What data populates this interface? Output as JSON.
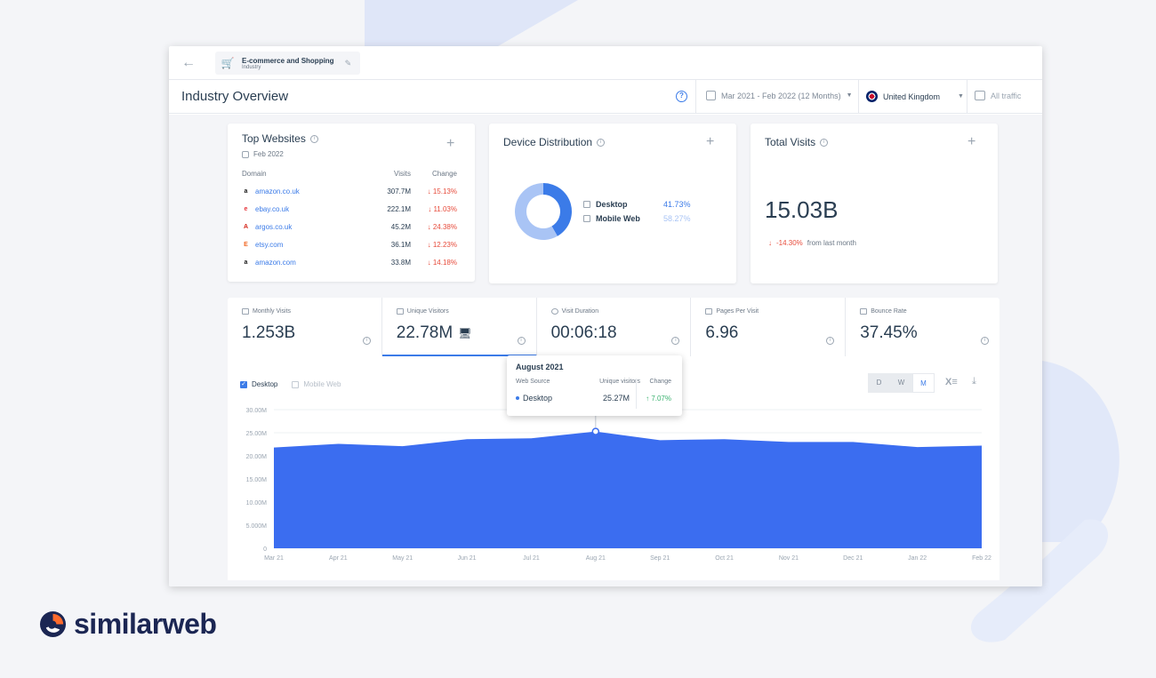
{
  "topbar": {
    "breadcrumb_title": "E-commerce and Shopping",
    "breadcrumb_subtitle": "Industry"
  },
  "header": {
    "page_title": "Industry Overview",
    "date_range": "Mar 2021 - Feb 2022 (12 Months)",
    "country": "United Kingdom",
    "traffic": "All traffic"
  },
  "top_websites": {
    "title": "Top Websites",
    "date": "Feb 2022",
    "columns": [
      "Domain",
      "Visits",
      "Change"
    ],
    "rows": [
      {
        "domain": "amazon.co.uk",
        "visits": "307.7M",
        "change": "15.13%",
        "favicon": "a",
        "favicon_color": "#111111"
      },
      {
        "domain": "ebay.co.uk",
        "visits": "222.1M",
        "change": "11.03%",
        "favicon": "e",
        "favicon_color": "#e53238"
      },
      {
        "domain": "argos.co.uk",
        "visits": "45.2M",
        "change": "24.38%",
        "favicon": "A",
        "favicon_color": "#d42114"
      },
      {
        "domain": "etsy.com",
        "visits": "36.1M",
        "change": "12.23%",
        "favicon": "E",
        "favicon_color": "#f1641e"
      },
      {
        "domain": "amazon.com",
        "visits": "33.8M",
        "change": "14.18%",
        "favicon": "a",
        "favicon_color": "#111111"
      }
    ]
  },
  "device_distribution": {
    "title": "Device Distribution",
    "items": [
      {
        "name": "Desktop",
        "value": "41.73%",
        "color": "#3b7be8"
      },
      {
        "name": "Mobile Web",
        "value": "58.27%",
        "color": "#a9c4f5"
      }
    ]
  },
  "total_visits": {
    "title": "Total Visits",
    "value": "15.03B",
    "change": "-14.30%",
    "change_note": "from last month"
  },
  "metrics": [
    {
      "label": "Monthly Visits",
      "value": "1.253B"
    },
    {
      "label": "Unique Visitors",
      "value": "22.78M"
    },
    {
      "label": "Visit Duration",
      "value": "00:06:18"
    },
    {
      "label": "Pages Per Visit",
      "value": "6.96"
    },
    {
      "label": "Bounce Rate",
      "value": "37.45%"
    }
  ],
  "chart_controls": {
    "desktop_label": "Desktop",
    "mobile_label": "Mobile Web",
    "granularity": [
      "D",
      "W",
      "M"
    ],
    "selected_granularity": "M"
  },
  "tooltip": {
    "title": "August 2021",
    "col1": "Web Source",
    "col2": "Unique visitors",
    "col3": "Change",
    "source": "Desktop",
    "value": "25.27M",
    "change": "7.07%"
  },
  "chart_data": {
    "type": "area",
    "categories": [
      "Mar 21",
      "Apr 21",
      "May 21",
      "Jun 21",
      "Jul 21",
      "Aug 21",
      "Sep 21",
      "Oct 21",
      "Nov 21",
      "Dec 21",
      "Jan 22",
      "Feb 22"
    ],
    "series": [
      {
        "name": "Desktop",
        "color": "#3b6df0",
        "values": [
          21.8,
          22.6,
          22.1,
          23.6,
          23.8,
          25.27,
          23.4,
          23.6,
          23.0,
          23.0,
          21.9,
          22.2
        ]
      }
    ],
    "y_ticks": [
      "0",
      "5.000M",
      "10.00M",
      "15.00M",
      "20.00M",
      "25.00M",
      "30.00M"
    ],
    "ylim": [
      0,
      30
    ]
  },
  "brand": {
    "name": "similarweb"
  }
}
